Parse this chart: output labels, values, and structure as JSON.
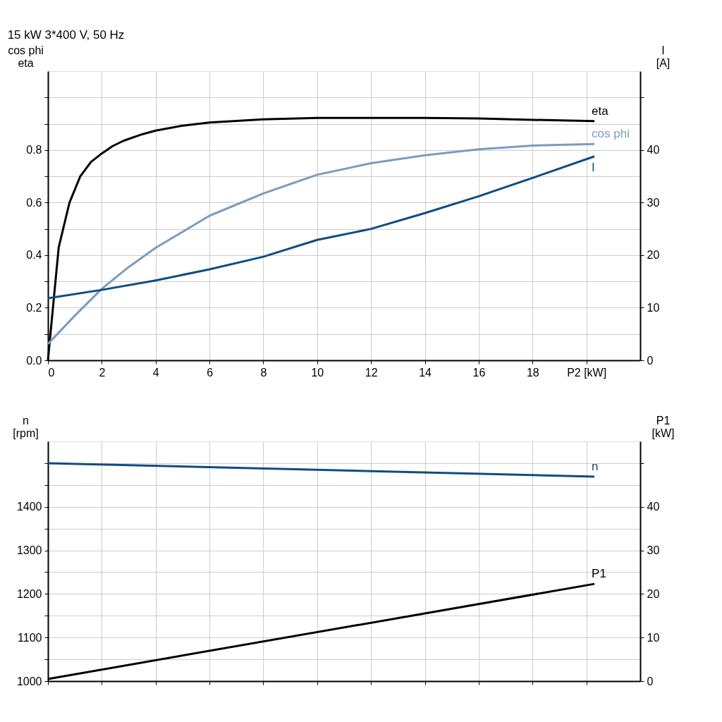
{
  "chart_data": [
    {
      "type": "line",
      "title": "15 kW   3*400 V, 50 Hz",
      "ylabel": "cos phi\neta",
      "y2label": "I\n[A]",
      "xlim": [
        0,
        22
      ],
      "xticks": [
        0,
        2,
        4,
        6,
        8,
        10,
        12,
        14,
        16,
        18,
        {
          "value": 20,
          "label": "P2 [kW]"
        }
      ],
      "ylim": [
        0,
        1.1
      ],
      "yticks": [
        {
          "value": 0,
          "label": "0.0"
        },
        {
          "value": 0.1,
          "label": null
        },
        0.2,
        {
          "value": 0.3,
          "label": null
        },
        0.4,
        {
          "value": 0.5,
          "label": null
        },
        0.6,
        {
          "value": 0.7,
          "label": null
        },
        0.8,
        {
          "value": 0.9,
          "label": null
        },
        {
          "value": 1.0,
          "label": null
        }
      ],
      "y2lim": [
        0,
        55
      ],
      "y2ticks": [
        0,
        10,
        20,
        30,
        40,
        {
          "value": 50,
          "label": null
        }
      ],
      "grid": true,
      "legend": false,
      "marker": "none",
      "line_style": "solid",
      "series": [
        {
          "name": "eta",
          "color": "#000000",
          "x": [
            0,
            0.4,
            0.8,
            1.2,
            1.6,
            2,
            2.4,
            2.8,
            3.5,
            4,
            5,
            6,
            8,
            10,
            12,
            14,
            16,
            18,
            20.3
          ],
          "values": [
            0,
            0.43,
            0.6,
            0.7,
            0.755,
            0.787,
            0.815,
            0.835,
            0.86,
            0.874,
            0.893,
            0.905,
            0.917,
            0.922,
            0.922,
            0.922,
            0.92,
            0.915,
            0.91
          ]
        },
        {
          "name": "cos phi",
          "color": "#7a9cbf",
          "x": [
            0,
            1,
            2,
            3,
            4,
            6,
            8,
            10,
            12,
            14,
            16,
            18,
            20.3
          ],
          "values": [
            0.062,
            0.17,
            0.272,
            0.355,
            0.428,
            0.55,
            0.635,
            0.706,
            0.75,
            0.78,
            0.803,
            0.817,
            0.823
          ]
        },
        {
          "name": "I",
          "color": "#0f4c81",
          "axis": "y2",
          "x": [
            0,
            2,
            4,
            6,
            8,
            10,
            12,
            14,
            16,
            18,
            20.3
          ],
          "values": [
            11.8,
            13.4,
            15.2,
            17.3,
            19.7,
            22.9,
            25.0,
            28.0,
            31.2,
            34.7,
            38.8
          ]
        }
      ]
    },
    {
      "type": "line",
      "ylabel": "n\n[rpm]",
      "y2label": "P1\n[kW]",
      "xlim": [
        0,
        22
      ],
      "xticks": [
        {
          "value": 0,
          "label": null
        },
        {
          "value": 2,
          "label": null
        },
        {
          "value": 4,
          "label": null
        },
        {
          "value": 6,
          "label": null
        },
        {
          "value": 8,
          "label": null
        },
        {
          "value": 10,
          "label": null
        },
        {
          "value": 12,
          "label": null
        },
        {
          "value": 14,
          "label": null
        },
        {
          "value": 16,
          "label": null
        },
        {
          "value": 18,
          "label": null
        },
        {
          "value": 20,
          "label": null
        }
      ],
      "tick_labels": "y",
      "ylim": [
        1000,
        1550
      ],
      "yticks": [
        1000,
        {
          "value": 1050,
          "label": null
        },
        1100,
        {
          "value": 1150,
          "label": null
        },
        1200,
        {
          "value": 1250,
          "label": null
        },
        1300,
        {
          "value": 1350,
          "label": null
        },
        1400,
        {
          "value": 1450,
          "label": null
        },
        {
          "value": 1500,
          "label": null
        }
      ],
      "y2lim": [
        0,
        55
      ],
      "y2ticks": [
        0,
        10,
        20,
        30,
        40,
        {
          "value": 50,
          "label": null
        }
      ],
      "grid": true,
      "legend": false,
      "marker": "none",
      "line_style": "solid",
      "series": [
        {
          "name": "n",
          "color": "#0f4c81",
          "x": [
            0,
            20.3
          ],
          "values": [
            1500,
            1469
          ]
        },
        {
          "name": "P1",
          "color": "#000000",
          "axis": "y2",
          "x": [
            0,
            20.3
          ],
          "values": [
            0.5,
            22.3
          ]
        }
      ]
    }
  ]
}
